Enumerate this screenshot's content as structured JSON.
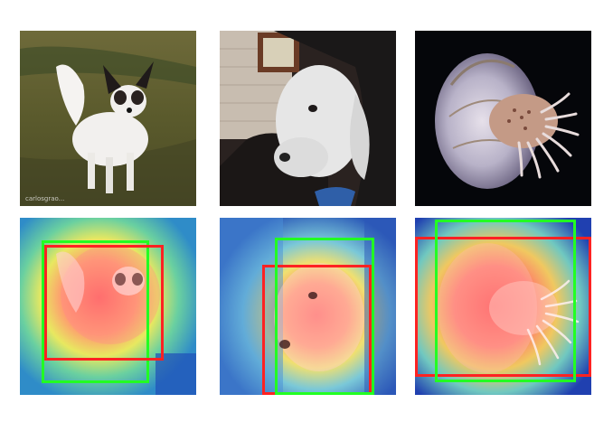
{
  "colors": {
    "red_box": "#ff2222",
    "green_box": "#22ff22"
  },
  "panels": [
    {
      "subject": "papillon-dog",
      "kind": "original"
    },
    {
      "subject": "bedlington-terrier",
      "kind": "original"
    },
    {
      "subject": "nautilus",
      "kind": "original"
    },
    {
      "subject": "papillon-dog",
      "kind": "heatmap"
    },
    {
      "subject": "bedlington-terrier",
      "kind": "heatmap"
    },
    {
      "subject": "nautilus",
      "kind": "heatmap"
    }
  ],
  "watermark": "carlosgrao..."
}
